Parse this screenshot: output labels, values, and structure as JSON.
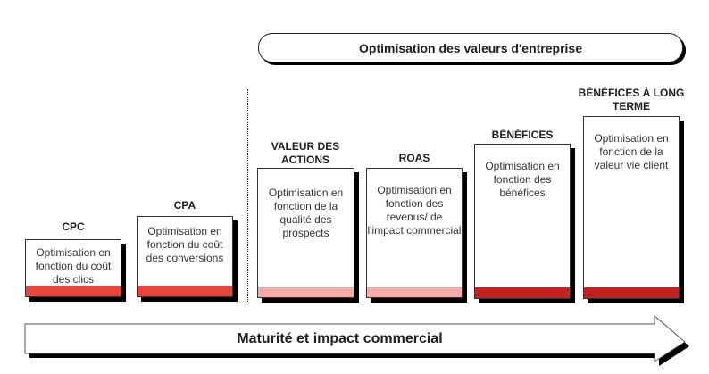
{
  "header": {
    "label": "Optimisation des valeurs d'entreprise"
  },
  "stages": [
    {
      "title": "CPC",
      "description": "Optimisation en fonction du coût des clics",
      "bar_color": "#e8453c"
    },
    {
      "title": "CPA",
      "description": "Optimisation en fonction du coût des conversions",
      "bar_color": "#e8453c"
    },
    {
      "title": "VALEUR DES ACTIONS",
      "description": "Optimisation en fonction de la qualité des prospects",
      "bar_color": "#f4aaa6"
    },
    {
      "title": "ROAS",
      "description": "Optimisation en fonction des revenus/ de l'impact commercial",
      "bar_color": "#f4aaa6"
    },
    {
      "title": "BÉNÉFICES",
      "description": "Optimisation en fonction des bénéfices",
      "bar_color": "#c5221f"
    },
    {
      "title": "BÉNÉFICES À LONG TERME",
      "description": "Optimisation en fonction de la valeur vie client",
      "bar_color": "#c5221f"
    }
  ],
  "arrow": {
    "label": "Maturité et impact commercial"
  }
}
